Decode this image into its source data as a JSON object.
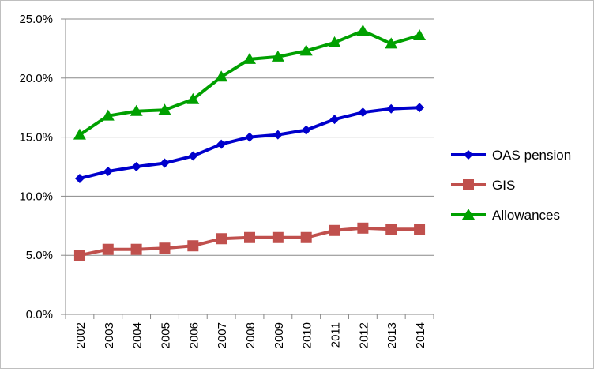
{
  "chart_data": {
    "type": "line",
    "categories": [
      "2002",
      "2003",
      "2004",
      "2005",
      "2006",
      "2007",
      "2008",
      "2009",
      "2010",
      "2011",
      "2012",
      "2013",
      "2014"
    ],
    "y_ticks": [
      "0.0%",
      "5.0%",
      "10.0%",
      "15.0%",
      "20.0%",
      "25.0%"
    ],
    "ylim": [
      0,
      25
    ],
    "grid": true,
    "legend_position": "right",
    "series": [
      {
        "name": "OAS pension",
        "color": "#0000cc",
        "marker": "diamond",
        "values": [
          11.5,
          12.1,
          12.5,
          12.8,
          13.4,
          14.4,
          15.0,
          15.2,
          15.6,
          16.5,
          17.1,
          17.4,
          17.5
        ]
      },
      {
        "name": "GIS",
        "color": "#c0504d",
        "marker": "square",
        "values": [
          5.0,
          5.5,
          5.5,
          5.6,
          5.8,
          6.4,
          6.5,
          6.5,
          6.5,
          7.1,
          7.3,
          7.2,
          7.2
        ]
      },
      {
        "name": "Allowances",
        "color": "#00a000",
        "marker": "triangle",
        "values": [
          15.2,
          16.8,
          17.2,
          17.3,
          18.2,
          20.1,
          21.6,
          21.8,
          22.3,
          23.0,
          24.0,
          22.9,
          23.6
        ]
      }
    ]
  }
}
